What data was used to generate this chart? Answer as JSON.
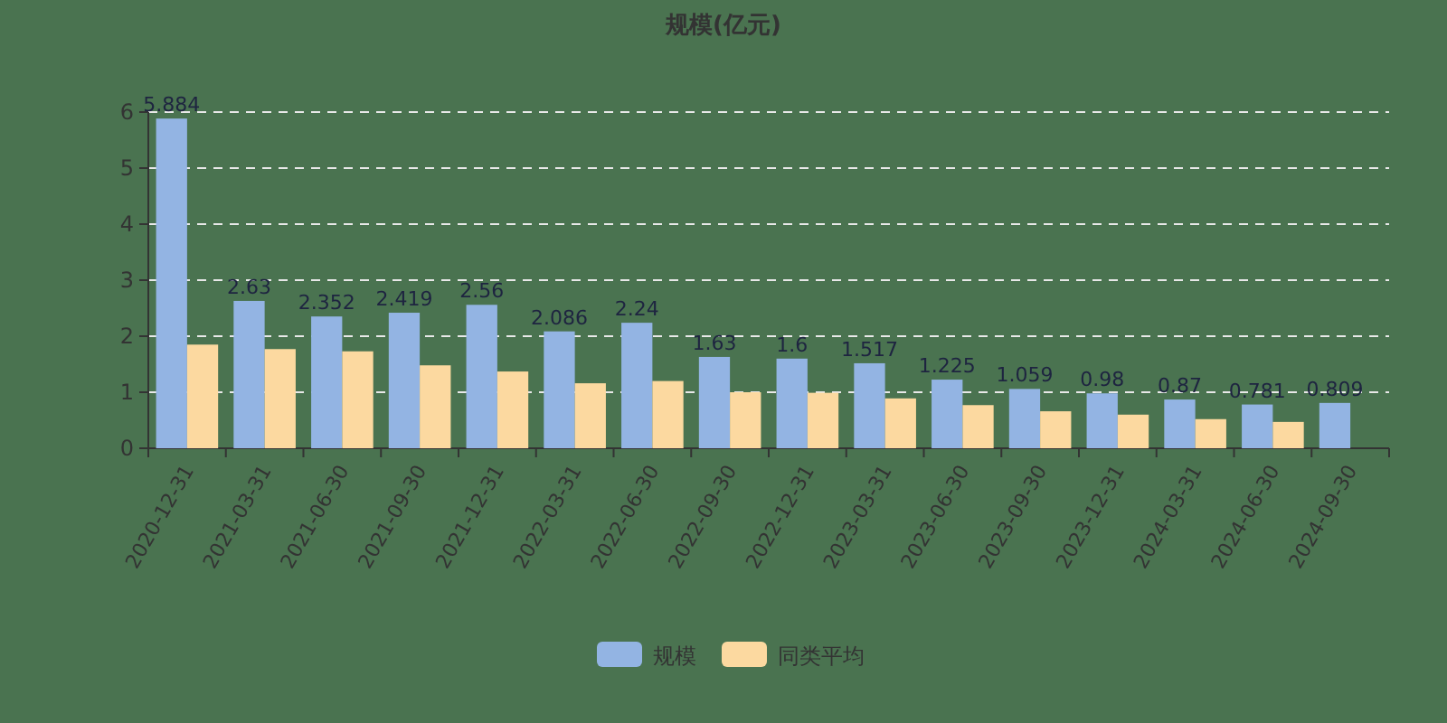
{
  "chart_data": {
    "type": "bar",
    "title": "规模(亿元)",
    "categories": [
      "2020-12-31",
      "2021-03-31",
      "2021-06-30",
      "2021-09-30",
      "2021-12-31",
      "2022-03-31",
      "2022-06-30",
      "2022-09-30",
      "2022-12-31",
      "2023-03-31",
      "2023-06-30",
      "2023-09-30",
      "2023-12-31",
      "2024-03-31",
      "2024-06-30",
      "2024-09-30"
    ],
    "series": [
      {
        "name": "规模",
        "color": "#93b4e3",
        "values": [
          5.884,
          2.63,
          2.352,
          2.419,
          2.56,
          2.086,
          2.24,
          1.63,
          1.6,
          1.517,
          1.225,
          1.059,
          0.98,
          0.87,
          0.781,
          0.809
        ],
        "value_labels": [
          "5.884",
          "2.63",
          "2.352",
          "2.419",
          "2.56",
          "2.086",
          "2.24",
          "1.63",
          "1.6",
          "1.517",
          "1.225",
          "1.059",
          "0.98",
          "0.87",
          "0.781",
          "0.809"
        ]
      },
      {
        "name": "同类平均",
        "color": "#fcd9a0",
        "values": [
          1.85,
          1.77,
          1.73,
          1.48,
          1.37,
          1.16,
          1.2,
          1.0,
          0.99,
          0.89,
          0.77,
          0.66,
          0.6,
          0.52,
          0.47,
          null
        ]
      }
    ],
    "ylim": [
      0,
      6
    ],
    "yticks": [
      0,
      1,
      2,
      3,
      4,
      5,
      6
    ],
    "grid": "y",
    "legend": "bottom"
  }
}
